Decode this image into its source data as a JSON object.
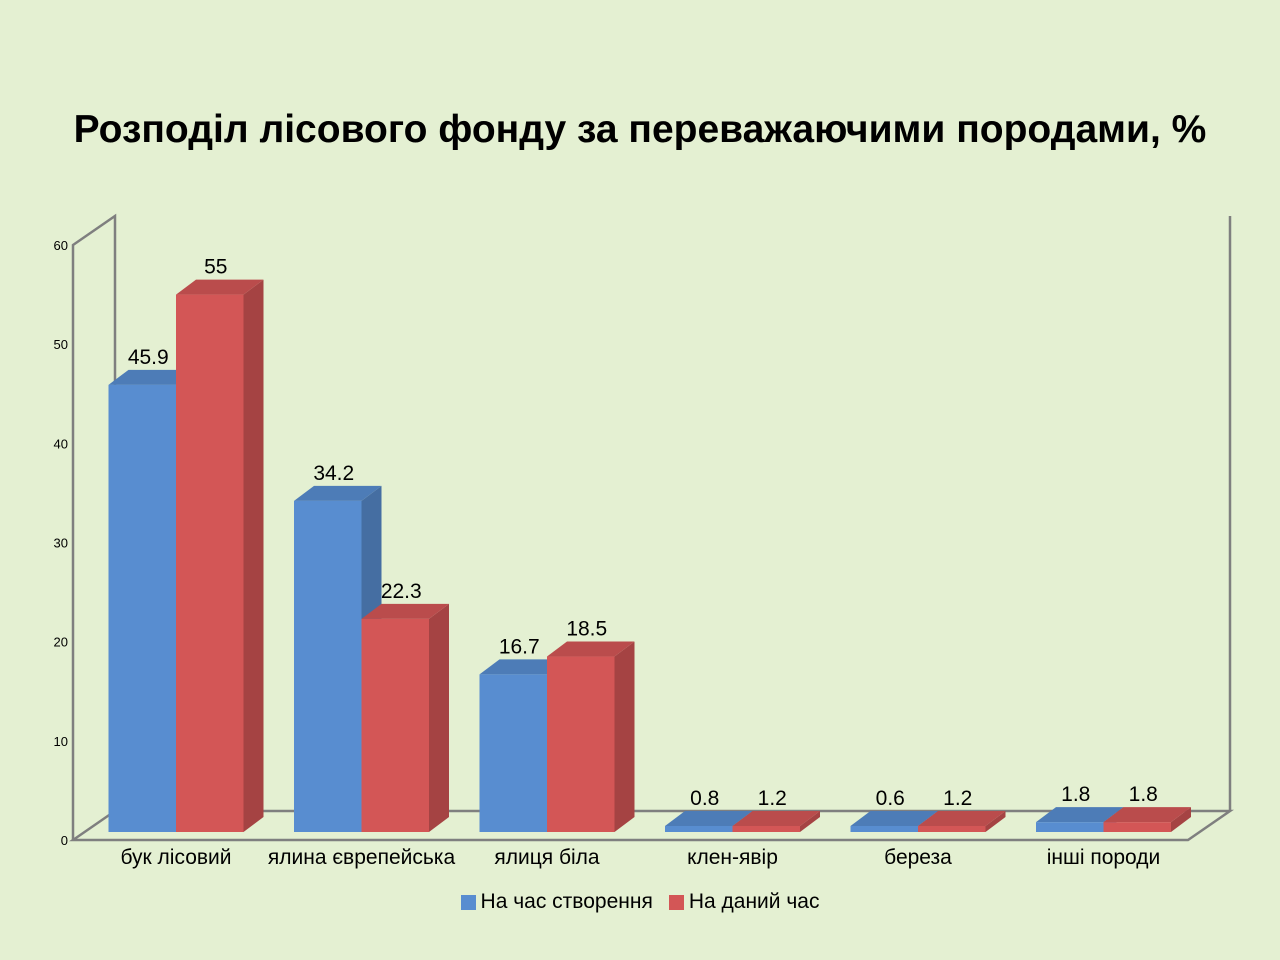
{
  "chart_data": {
    "type": "bar",
    "title": "Розподіл лісового фонду за переважаючими породами, %",
    "categories": [
      "бук лісовий",
      "ялина єврепейська",
      "ялиця біла",
      "клен-явір",
      "береза",
      "інші породи"
    ],
    "series": [
      {
        "name": "На час створення",
        "color": "#588dd0",
        "values": [
          45.9,
          34.2,
          16.7,
          0.8,
          0.6,
          1.8
        ]
      },
      {
        "name": "На даний час",
        "color": "#d35656",
        "values": [
          55,
          22.3,
          18.5,
          1.2,
          1.2,
          1.8
        ]
      }
    ],
    "ylim": [
      0,
      60
    ],
    "yticks": [
      "0",
      "10",
      "20",
      "30",
      "40",
      "50",
      "60"
    ],
    "data_labels": [
      [
        "45.9",
        "34.2",
        "16.7",
        "0.8",
        "0.6",
        "1.8"
      ],
      [
        "55",
        "22.3",
        "18.5",
        "1.2",
        "1.2",
        "1.8"
      ]
    ],
    "xlabel": "",
    "ylabel": "",
    "grid": false,
    "legend_position": "bottom",
    "style": "3d-clustered-column",
    "background": "#e4f0d2",
    "axis_color": "#7f7f7f"
  }
}
